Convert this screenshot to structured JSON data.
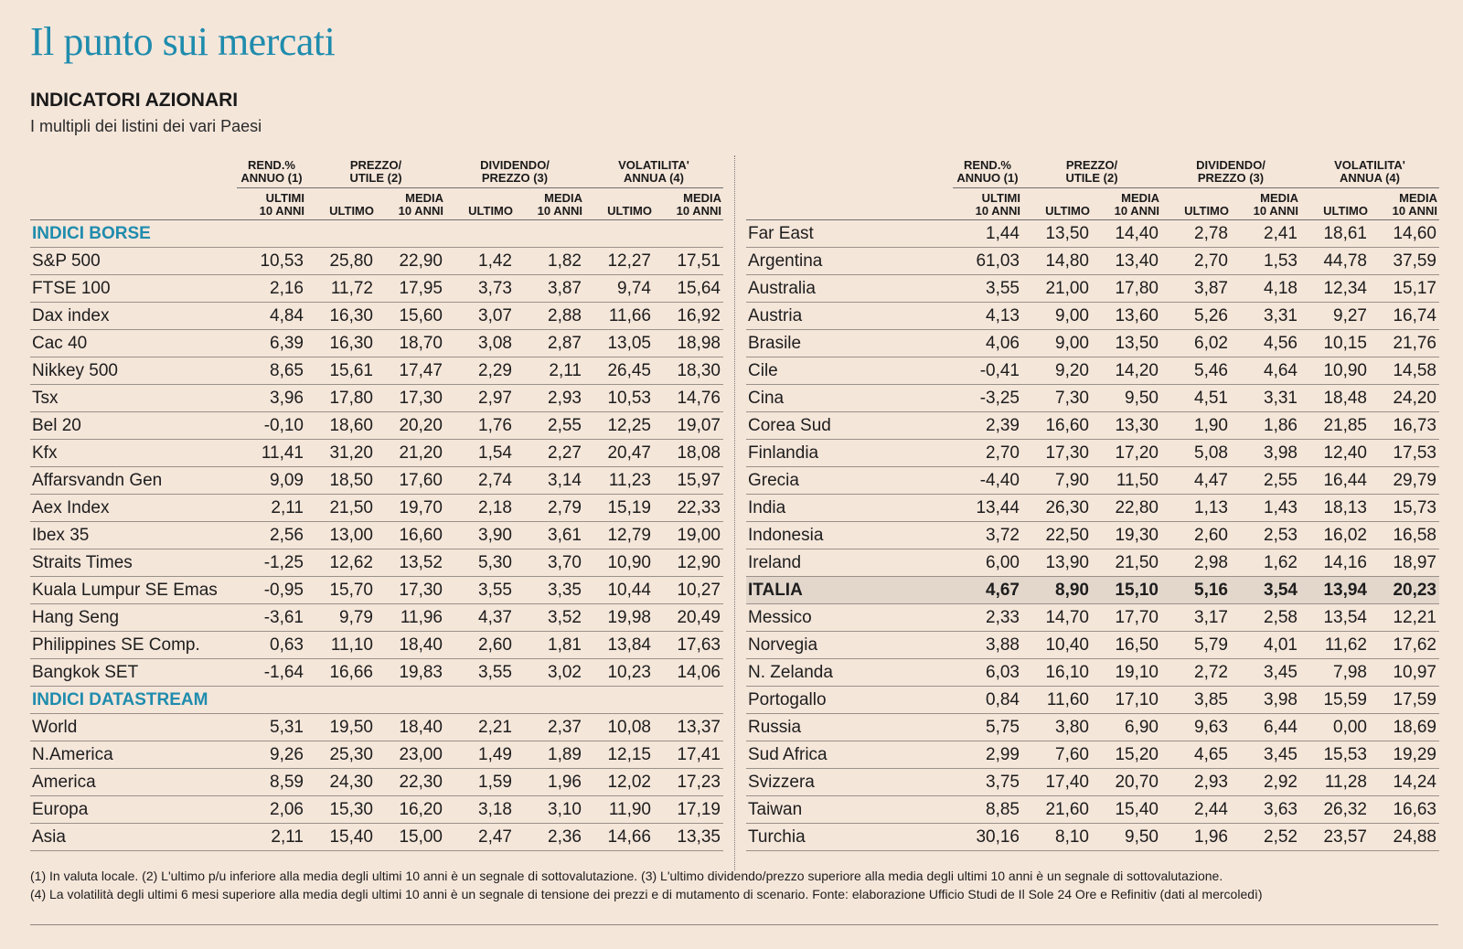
{
  "title": "Il punto sui mercati",
  "subtitle": "INDICATORI AZIONARI",
  "description": "I multipli dei listini dei vari Paesi",
  "header": {
    "groups": [
      {
        "line1": "REND.%",
        "line2": "ANNUO (1)"
      },
      {
        "line1": "PREZZO/",
        "line2": "UTILE (2)"
      },
      {
        "line1": "DIVIDENDO/",
        "line2": "PREZZO (3)"
      },
      {
        "line1": "VOLATILITA'",
        "line2": "ANNUA (4)"
      }
    ],
    "sub": [
      {
        "line1": "ULTIMI",
        "line2": "10 ANNI"
      },
      {
        "line1": "ULTIMO",
        "line2": ""
      },
      {
        "line1": "MEDIA",
        "line2": "10 ANNI"
      },
      {
        "line1": "ULTIMO",
        "line2": ""
      },
      {
        "line1": "MEDIA",
        "line2": "10 ANNI"
      },
      {
        "line1": "ULTIMO",
        "line2": ""
      },
      {
        "line1": "MEDIA",
        "line2": "10 ANNI"
      }
    ]
  },
  "left_table": {
    "rows": [
      {
        "type": "section",
        "name": "INDICI BORSE"
      },
      {
        "name": "S&P 500",
        "values": [
          "10,53",
          "25,80",
          "22,90",
          "1,42",
          "1,82",
          "12,27",
          "17,51"
        ]
      },
      {
        "name": "FTSE 100",
        "values": [
          "2,16",
          "11,72",
          "17,95",
          "3,73",
          "3,87",
          "9,74",
          "15,64"
        ]
      },
      {
        "name": "Dax index",
        "values": [
          "4,84",
          "16,30",
          "15,60",
          "3,07",
          "2,88",
          "11,66",
          "16,92"
        ]
      },
      {
        "name": "Cac 40",
        "values": [
          "6,39",
          "16,30",
          "18,70",
          "3,08",
          "2,87",
          "13,05",
          "18,98"
        ]
      },
      {
        "name": "Nikkey 500",
        "values": [
          "8,65",
          "15,61",
          "17,47",
          "2,29",
          "2,11",
          "26,45",
          "18,30"
        ]
      },
      {
        "name": "Tsx",
        "values": [
          "3,96",
          "17,80",
          "17,30",
          "2,97",
          "2,93",
          "10,53",
          "14,76"
        ]
      },
      {
        "name": "Bel 20",
        "values": [
          "-0,10",
          "18,60",
          "20,20",
          "1,76",
          "2,55",
          "12,25",
          "19,07"
        ]
      },
      {
        "name": "Kfx",
        "values": [
          "11,41",
          "31,20",
          "21,20",
          "1,54",
          "2,27",
          "20,47",
          "18,08"
        ]
      },
      {
        "name": "Affarsvandn Gen",
        "values": [
          "9,09",
          "18,50",
          "17,60",
          "2,74",
          "3,14",
          "11,23",
          "15,97"
        ]
      },
      {
        "name": "Aex Index",
        "values": [
          "2,11",
          "21,50",
          "19,70",
          "2,18",
          "2,79",
          "15,19",
          "22,33"
        ]
      },
      {
        "name": "Ibex 35",
        "values": [
          "2,56",
          "13,00",
          "16,60",
          "3,90",
          "3,61",
          "12,79",
          "19,00"
        ]
      },
      {
        "name": "Straits Times",
        "values": [
          "-1,25",
          "12,62",
          "13,52",
          "5,30",
          "3,70",
          "10,90",
          "12,90"
        ]
      },
      {
        "name": "Kuala Lumpur SE Emas",
        "values": [
          "-0,95",
          "15,70",
          "17,30",
          "3,55",
          "3,35",
          "10,44",
          "10,27"
        ]
      },
      {
        "name": "Hang Seng",
        "values": [
          "-3,61",
          "9,79",
          "11,96",
          "4,37",
          "3,52",
          "19,98",
          "20,49"
        ]
      },
      {
        "name": "Philippines SE Comp.",
        "values": [
          "0,63",
          "11,10",
          "18,40",
          "2,60",
          "1,81",
          "13,84",
          "17,63"
        ]
      },
      {
        "name": "Bangkok SET",
        "values": [
          "-1,64",
          "16,66",
          "19,83",
          "3,55",
          "3,02",
          "10,23",
          "14,06"
        ]
      },
      {
        "type": "section",
        "name": "INDICI DATASTREAM"
      },
      {
        "name": "World",
        "values": [
          "5,31",
          "19,50",
          "18,40",
          "2,21",
          "2,37",
          "10,08",
          "13,37"
        ]
      },
      {
        "name": "N.America",
        "values": [
          "9,26",
          "25,30",
          "23,00",
          "1,49",
          "1,89",
          "12,15",
          "17,41"
        ]
      },
      {
        "name": "America",
        "values": [
          "8,59",
          "24,30",
          "22,30",
          "1,59",
          "1,96",
          "12,02",
          "17,23"
        ]
      },
      {
        "name": "Europa",
        "values": [
          "2,06",
          "15,30",
          "16,20",
          "3,18",
          "3,10",
          "11,90",
          "17,19"
        ]
      },
      {
        "name": "Asia",
        "values": [
          "2,11",
          "15,40",
          "15,00",
          "2,47",
          "2,36",
          "14,66",
          "13,35"
        ]
      }
    ]
  },
  "right_table": {
    "rows": [
      {
        "name": "Far East",
        "values": [
          "1,44",
          "13,50",
          "14,40",
          "2,78",
          "2,41",
          "18,61",
          "14,60"
        ]
      },
      {
        "name": "Argentina",
        "values": [
          "61,03",
          "14,80",
          "13,40",
          "2,70",
          "1,53",
          "44,78",
          "37,59"
        ]
      },
      {
        "name": "Australia",
        "values": [
          "3,55",
          "21,00",
          "17,80",
          "3,87",
          "4,18",
          "12,34",
          "15,17"
        ]
      },
      {
        "name": "Austria",
        "values": [
          "4,13",
          "9,00",
          "13,60",
          "5,26",
          "3,31",
          "9,27",
          "16,74"
        ]
      },
      {
        "name": "Brasile",
        "values": [
          "4,06",
          "9,00",
          "13,50",
          "6,02",
          "4,56",
          "10,15",
          "21,76"
        ]
      },
      {
        "name": "Cile",
        "values": [
          "-0,41",
          "9,20",
          "14,20",
          "5,46",
          "4,64",
          "10,90",
          "14,58"
        ]
      },
      {
        "name": "Cina",
        "values": [
          "-3,25",
          "7,30",
          "9,50",
          "4,51",
          "3,31",
          "18,48",
          "24,20"
        ]
      },
      {
        "name": "Corea Sud",
        "values": [
          "2,39",
          "16,60",
          "13,30",
          "1,90",
          "1,86",
          "21,85",
          "16,73"
        ]
      },
      {
        "name": "Finlandia",
        "values": [
          "2,70",
          "17,30",
          "17,20",
          "5,08",
          "3,98",
          "12,40",
          "17,53"
        ]
      },
      {
        "name": "Grecia",
        "values": [
          "-4,40",
          "7,90",
          "11,50",
          "4,47",
          "2,55",
          "16,44",
          "29,79"
        ]
      },
      {
        "name": "India",
        "values": [
          "13,44",
          "26,30",
          "22,80",
          "1,13",
          "1,43",
          "18,13",
          "15,73"
        ]
      },
      {
        "name": "Indonesia",
        "values": [
          "3,72",
          "22,50",
          "19,30",
          "2,60",
          "2,53",
          "16,02",
          "16,58"
        ]
      },
      {
        "name": "Ireland",
        "values": [
          "6,00",
          "13,90",
          "21,50",
          "2,98",
          "1,62",
          "14,16",
          "18,97"
        ]
      },
      {
        "type": "highlight",
        "name": "ITALIA",
        "values": [
          "4,67",
          "8,90",
          "15,10",
          "5,16",
          "3,54",
          "13,94",
          "20,23"
        ]
      },
      {
        "name": "Messico",
        "values": [
          "2,33",
          "14,70",
          "17,70",
          "3,17",
          "2,58",
          "13,54",
          "12,21"
        ]
      },
      {
        "name": "Norvegia",
        "values": [
          "3,88",
          "10,40",
          "16,50",
          "5,79",
          "4,01",
          "11,62",
          "17,62"
        ]
      },
      {
        "name": "N. Zelanda",
        "values": [
          "6,03",
          "16,10",
          "19,10",
          "2,72",
          "3,45",
          "7,98",
          "10,97"
        ]
      },
      {
        "name": "Portogallo",
        "values": [
          "0,84",
          "11,60",
          "17,10",
          "3,85",
          "3,98",
          "15,59",
          "17,59"
        ]
      },
      {
        "name": "Russia",
        "values": [
          "5,75",
          "3,80",
          "6,90",
          "9,63",
          "6,44",
          "0,00",
          "18,69"
        ]
      },
      {
        "name": "Sud Africa",
        "values": [
          "2,99",
          "7,60",
          "15,20",
          "4,65",
          "3,45",
          "15,53",
          "19,29"
        ]
      },
      {
        "name": "Svizzera",
        "values": [
          "3,75",
          "17,40",
          "20,70",
          "2,93",
          "2,92",
          "11,28",
          "14,24"
        ]
      },
      {
        "name": "Taiwan",
        "values": [
          "8,85",
          "21,60",
          "15,40",
          "2,44",
          "3,63",
          "26,32",
          "16,63"
        ]
      },
      {
        "name": "Turchia",
        "values": [
          "30,16",
          "8,10",
          "9,50",
          "1,96",
          "2,52",
          "23,57",
          "24,88"
        ]
      }
    ]
  },
  "notes": [
    "(1) In valuta locale. (2) L'ultimo p/u inferiore alla media degli ultimi 10 anni è un segnale di sottovalutazione. (3) L'ultimo dividendo/prezzo superiore alla media degli ultimi 10 anni è un segnale di sottovalutazione.",
    "(4) La volatilità degli ultimi 6 mesi superiore alla media degli ultimi 10 anni è un segnale di tensione dei prezzi e di mutamento di scenario. Fonte: elaborazione Ufficio Studi de Il Sole 24 Ore e Refinitiv (dati al mercoledì)"
  ]
}
